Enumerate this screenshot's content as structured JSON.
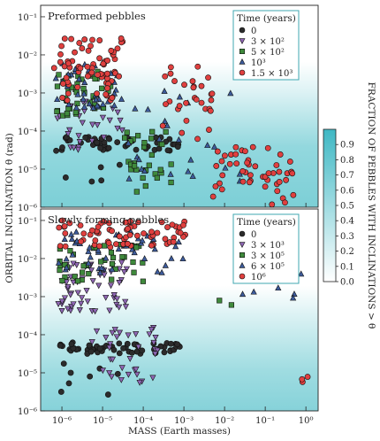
{
  "chart_data": [
    {
      "type": "scatter",
      "panel": "top",
      "title": "Preformed pebbles",
      "xlabel": "",
      "ylabel": "",
      "x_scale": "log",
      "y_scale": "log",
      "xlim": [
        3e-07,
        2
      ],
      "ylim": [
        1e-06,
        0.2
      ],
      "xticks": [
        "10⁻⁶",
        "10⁻⁵",
        "10⁻⁴",
        "10⁻³",
        "10⁻²",
        "10⁻¹",
        "10⁰"
      ],
      "yticks": [
        "10⁻⁶",
        "10⁻⁵",
        "10⁻⁴",
        "10⁻³",
        "10⁻²",
        "10⁻¹"
      ],
      "legend": {
        "title": "Time (years)",
        "position": "top-right",
        "entries": [
          {
            "label": "0",
            "marker": "circle",
            "color": "#2b2b2b"
          },
          {
            "label": "3 × 10²",
            "marker": "triangle-down",
            "color": "#8e66b3"
          },
          {
            "label": "5 × 10²",
            "marker": "square",
            "color": "#3f8a3c"
          },
          {
            "label": "10³",
            "marker": "triangle-up",
            "color": "#3d5b9b"
          },
          {
            "label": "1.5 × 10³",
            "marker": "circle",
            "color": "#e0403f"
          }
        ]
      },
      "series": [
        {
          "label": "0",
          "marker": "circle",
          "color": "#2b2b2b",
          "clusters": [
            {
              "xlog": [
                -6.15,
                -3.1
              ],
              "ylog": [
                -4.55,
                -4.15
              ],
              "n": 50
            },
            {
              "xlog": [
                -6.1,
                -4.4
              ],
              "ylog": [
                -5.5,
                -4.7
              ],
              "n": 5
            }
          ]
        },
        {
          "label": "3 × 10²",
          "marker": "triangle-down",
          "color": "#8e66b3",
          "clusters": [
            {
              "xlog": [
                -6.15,
                -4.4
              ],
              "ylog": [
                -4.7,
                -3.2
              ],
              "n": 30
            }
          ]
        },
        {
          "label": "5 × 10²",
          "marker": "square",
          "color": "#3f8a3c",
          "clusters": [
            {
              "xlog": [
                -6.15,
                -4.8
              ],
              "ylog": [
                -3.6,
                -2.4
              ],
              "n": 40
            },
            {
              "xlog": [
                -4.5,
                -3.2
              ],
              "ylog": [
                -5.6,
                -4.0
              ],
              "n": 30
            }
          ]
        },
        {
          "label": "10³",
          "marker": "triangle-up",
          "color": "#3d5b9b",
          "clusters": [
            {
              "xlog": [
                -6.15,
                -4.5
              ],
              "ylog": [
                -3.4,
                -2.2
              ],
              "n": 40
            },
            {
              "xlog": [
                -4.4,
                -1.5
              ],
              "ylog": [
                -5.4,
                -2.8
              ],
              "n": 25
            }
          ]
        },
        {
          "label": "1.5 × 10³",
          "marker": "circle",
          "color": "#e0403f",
          "clusters": [
            {
              "xlog": [
                -6.2,
                -4.5
              ],
              "ylog": [
                -3.2,
                -1.5
              ],
              "n": 70
            },
            {
              "xlog": [
                -3.6,
                -2.3
              ],
              "ylog": [
                -4.3,
                -2.3
              ],
              "n": 30
            },
            {
              "xlog": [
                -2.3,
                -0.3
              ],
              "ylog": [
                -6.0,
                -4.4
              ],
              "n": 50
            }
          ]
        }
      ]
    },
    {
      "type": "scatter",
      "panel": "bottom",
      "title": "Slowly forming pebbles",
      "xlabel": "MASS (Earth masses)",
      "ylabel": "ORBITAL INCLINATION θ (rad)",
      "x_scale": "log",
      "y_scale": "log",
      "xlim": [
        3e-07,
        2
      ],
      "ylim": [
        1e-06,
        0.2
      ],
      "xticks": [
        "10⁻⁶",
        "10⁻⁵",
        "10⁻⁴",
        "10⁻³",
        "10⁻²",
        "10⁻¹",
        "10⁰"
      ],
      "yticks": [
        "10⁻⁶",
        "10⁻⁵",
        "10⁻⁴",
        "10⁻³",
        "10⁻²",
        "10⁻¹"
      ],
      "legend": {
        "title": "Time (years)",
        "position": "top-right",
        "entries": [
          {
            "label": "0",
            "marker": "circle",
            "color": "#2b2b2b"
          },
          {
            "label": "3 × 10³",
            "marker": "triangle-down",
            "color": "#8e66b3"
          },
          {
            "label": "3 × 10⁵",
            "marker": "square",
            "color": "#3f8a3c"
          },
          {
            "label": "6 × 10⁵",
            "marker": "triangle-up",
            "color": "#3d5b9b"
          },
          {
            "label": "10⁶",
            "marker": "circle",
            "color": "#e0403f"
          }
        ]
      },
      "series": [
        {
          "label": "0",
          "marker": "circle",
          "color": "#2b2b2b",
          "clusters": [
            {
              "xlog": [
                -6.1,
                -3.1
              ],
              "ylog": [
                -4.5,
                -4.2
              ],
              "n": 60
            },
            {
              "xlog": [
                -6.1,
                -4.5
              ],
              "ylog": [
                -5.6,
                -4.7
              ],
              "n": 8
            }
          ]
        },
        {
          "label": "3 × 10³",
          "marker": "triangle-down",
          "color": "#8e66b3",
          "clusters": [
            {
              "xlog": [
                -6.1,
                -4.4
              ],
              "ylog": [
                -3.4,
                -2.1
              ],
              "n": 60
            },
            {
              "xlog": [
                -5.3,
                -3.6
              ],
              "ylog": [
                -5.3,
                -3.8
              ],
              "n": 35
            }
          ]
        },
        {
          "label": "3 × 10⁵",
          "marker": "square",
          "color": "#3f8a3c",
          "clusters": [
            {
              "xlog": [
                -6.1,
                -4.0
              ],
              "ylog": [
                -2.6,
                -1.6
              ],
              "n": 40
            },
            {
              "xlog": [
                -2.2,
                -1.8
              ],
              "ylog": [
                -3.3,
                -3.1
              ],
              "n": 2
            }
          ]
        },
        {
          "label": "6 × 10⁵",
          "marker": "triangle-up",
          "color": "#3d5b9b",
          "clusters": [
            {
              "xlog": [
                -6.1,
                -2.8
              ],
              "ylog": [
                -2.4,
                -1.3
              ],
              "n": 50
            },
            {
              "xlog": [
                -1.6,
                -0.1
              ],
              "ylog": [
                -3.2,
                -2.3
              ],
              "n": 10
            }
          ]
        },
        {
          "label": "10⁶",
          "marker": "circle",
          "color": "#e0403f",
          "clusters": [
            {
              "xlog": [
                -6.1,
                -2.9
              ],
              "ylog": [
                -1.7,
                -1.0
              ],
              "n": 70
            },
            {
              "xlog": [
                -0.15,
                0.05
              ],
              "ylog": [
                -5.4,
                -5.0
              ],
              "n": 3
            }
          ]
        }
      ]
    }
  ],
  "colorbar": {
    "label": "FRACTION OF PEBBLES WITH INCLINATIONS > θ",
    "range": [
      0,
      1
    ],
    "ticks": [
      "0.0",
      "0.1",
      "0.2",
      "0.3",
      "0.4",
      "0.5",
      "0.6",
      "0.7",
      "0.8",
      "0.9"
    ],
    "color_low": "#ffffff",
    "color_high": "#3fb8c4"
  }
}
